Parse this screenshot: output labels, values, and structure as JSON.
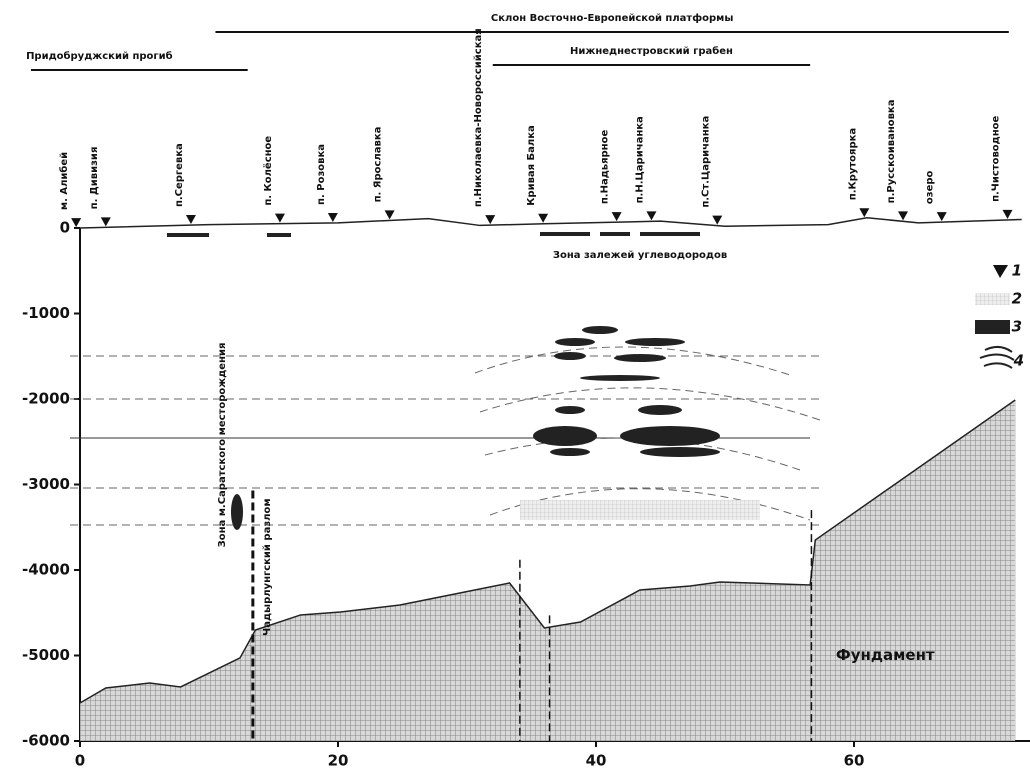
{
  "chart_data": {
    "type": "cross-section",
    "xlim": [
      0,
      73
    ],
    "ylim": [
      -6000,
      300
    ],
    "xticks": [
      0,
      20,
      40,
      60
    ],
    "yticks": [
      0,
      -1000,
      -2000,
      -3000,
      -4000,
      -5000,
      -6000
    ],
    "regions": [
      {
        "label": "Склон Восточно-Европейской платформы",
        "x": [
          10.5,
          72
        ]
      },
      {
        "label": "Придобруджский прогиб",
        "x": [
          -3.8,
          13
        ]
      },
      {
        "label": "Нижнеднестровский грабен",
        "x": [
          32,
          56.6
        ]
      }
    ],
    "wells": [
      {
        "name": "м. Алибей",
        "x": -0.3
      },
      {
        "name": "п. Дивизия",
        "x": 2.0
      },
      {
        "name": "п.Сергевка",
        "x": 8.6
      },
      {
        "name": "п. Колёсное",
        "x": 15.5
      },
      {
        "name": "п. Розовка",
        "x": 19.6
      },
      {
        "name": "п. Ярославка",
        "x": 24.0
      },
      {
        "name": "п.Николаевка-Новороссийская",
        "x": 31.8
      },
      {
        "name": "Кривая Балка",
        "x": 35.9
      },
      {
        "name": "п.Надьярное",
        "x": 41.6
      },
      {
        "name": "п.Н.Царичанка",
        "x": 44.3
      },
      {
        "name": "п.Ст.Царичанка",
        "x": 49.4
      },
      {
        "name": "п.Крутоярка",
        "x": 60.8
      },
      {
        "name": "п.Русскоивановка",
        "x": 63.8
      },
      {
        "name": "озеро",
        "x": 66.8
      },
      {
        "name": "п.Чистоводное",
        "x": 71.9
      }
    ],
    "surface": {
      "x": [
        0,
        10,
        20,
        27,
        31,
        36,
        45,
        50,
        58,
        61,
        65,
        73
      ],
      "values": [
        0,
        40,
        60,
        110,
        30,
        50,
        80,
        20,
        40,
        120,
        60,
        100
      ]
    },
    "series": [
      {
        "name": "Фундамент",
        "color": "#9a9a9a",
        "x": [
          0,
          2.0,
          5.4,
          7.8,
          12.4,
          13.6,
          17.1,
          20.2,
          24.8,
          27.9,
          33.3,
          36.0,
          38.8,
          43.4,
          47.3,
          49.6,
          56.6,
          57.0,
          72.5
        ],
        "values": [
          -5556,
          -5380,
          -5322,
          -5368,
          -5029,
          -4702,
          -4526,
          -4491,
          -4409,
          -4316,
          -4152,
          -4678,
          -4608,
          -4234,
          -4187,
          -4140,
          -4175,
          -3649,
          -2012
        ]
      }
    ],
    "faults": [
      {
        "x": 13.4,
        "top": -3070,
        "label": "Чадырлунгский разлом"
      },
      {
        "x": 34.1,
        "top": -3880
      },
      {
        "x": 36.4,
        "top": -4530
      },
      {
        "x": 56.7,
        "top": -3300
      }
    ],
    "deposit_zone": "Зона залежей углеводородов",
    "saratsky_zone": "Зона м.Саратского месторождения",
    "legend": [
      "1",
      "2",
      "3",
      "4"
    ]
  }
}
